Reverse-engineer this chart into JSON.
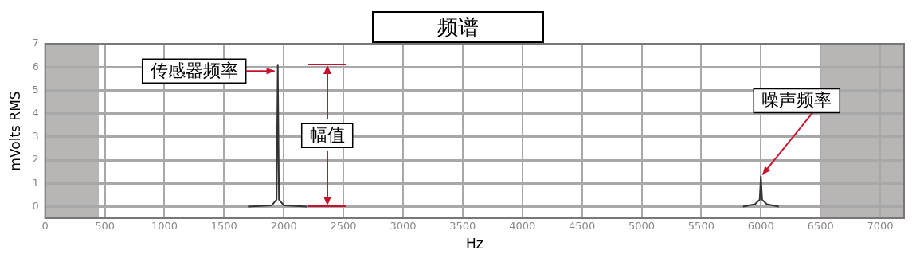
{
  "chart_data": {
    "type": "line",
    "title": "频谱",
    "xlabel": "Hz",
    "ylabel": "mVolts RMS",
    "series": [
      {
        "color": "#333333",
        "x": [
          1700,
          1900,
          1940,
          1950,
          1960,
          2000,
          2200
        ],
        "values": [
          0,
          0.05,
          0.3,
          6.1,
          0.3,
          0.05,
          0
        ]
      },
      {
        "color": "#333333",
        "x": [
          5850,
          5950,
          5990,
          6000,
          6010,
          6050,
          6150
        ],
        "values": [
          0,
          0.1,
          0.3,
          1.3,
          0.3,
          0.1,
          0
        ]
      }
    ],
    "xlim": [
      0,
      7200
    ],
    "xticks": [
      0,
      500,
      1000,
      1500,
      2000,
      2500,
      3000,
      3500,
      4000,
      4500,
      5000,
      5500,
      6000,
      6500,
      7000
    ],
    "ylim": [
      -0.5,
      7
    ],
    "yticks": [
      0,
      1,
      2,
      3,
      4,
      5,
      6,
      7
    ],
    "grid": true,
    "legend": false,
    "marker": "none",
    "line_style": "solid",
    "bands": [
      {
        "axis": "x",
        "from": 0,
        "to": 450,
        "color": "#b8b5b5"
      },
      {
        "axis": "x",
        "from": 6500,
        "to": 7200,
        "color": "#b8b5b5"
      }
    ],
    "annotations": [
      {
        "text": "传感器频率",
        "x": 1950,
        "y": 6.1
      },
      "幅值",
      {
        "text": "噪声频率",
        "x": 6000,
        "y": 1.3
      }
    ]
  }
}
